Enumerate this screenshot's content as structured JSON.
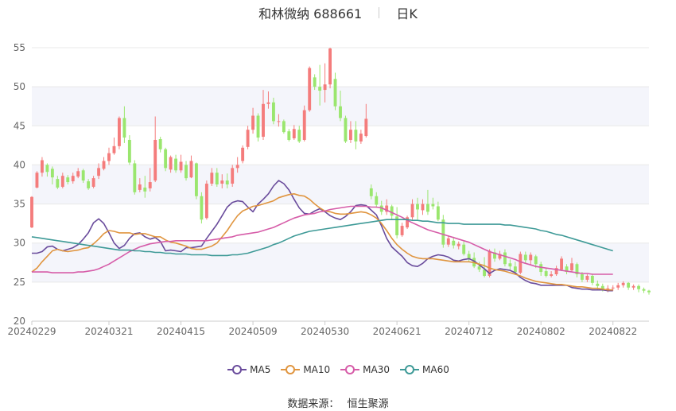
{
  "header": {
    "title": "和林微纳 688661",
    "period": "日K"
  },
  "footer": {
    "source_label": "数据来源：",
    "source_name": "恒生聚源"
  },
  "colors": {
    "up": "#f47c7c",
    "down": "#9ae66e",
    "ma5": "#6a4c9c",
    "ma10": "#e0953f",
    "ma30": "#d65ca8",
    "ma60": "#3e9a97",
    "band": "#f4f5fb",
    "grid": "#e8e8e8",
    "axis_text": "#666666"
  },
  "chart_data": {
    "type": "candlestick",
    "title": "和林微纳 688661",
    "period": "日K",
    "xlabel": "",
    "ylabel": "",
    "ylim": [
      20,
      55
    ],
    "yticks": [
      20,
      25,
      30,
      35,
      40,
      45,
      50,
      55
    ],
    "x_tick_labels": [
      "20240229",
      "20240321",
      "20240415",
      "20240509",
      "20240530",
      "20240621",
      "20240712",
      "20240802",
      "20240822"
    ],
    "x_tick_indices": [
      0,
      15,
      29,
      43,
      57,
      71,
      85,
      99,
      113
    ],
    "grid": true,
    "legend_position": "bottom",
    "dates": [
      "20240229",
      "20240301",
      "20240304",
      "20240305",
      "20240306",
      "20240307",
      "20240308",
      "20240311",
      "20240312",
      "20240313",
      "20240314",
      "20240315",
      "20240318",
      "20240319",
      "20240320",
      "20240321",
      "20240322",
      "20240325",
      "20240326",
      "20240327",
      "20240328",
      "20240329",
      "20240401",
      "20240402",
      "20240403",
      "20240408",
      "20240409",
      "20240410",
      "20240411",
      "20240415",
      "20240416",
      "20240417",
      "20240418",
      "20240419",
      "20240422",
      "20240423",
      "20240424",
      "20240425",
      "20240426",
      "20240429",
      "20240430",
      "20240506",
      "20240507",
      "20240509",
      "20240510",
      "20240513",
      "20240514",
      "20240515",
      "20240516",
      "20240517",
      "20240520",
      "20240521",
      "20240522",
      "20240523",
      "20240524",
      "20240527",
      "20240528",
      "20240530",
      "20240531",
      "20240603",
      "20240604",
      "20240605",
      "20240606",
      "20240607",
      "20240611",
      "20240612",
      "20240613",
      "20240614",
      "20240617",
      "20240618",
      "20240619",
      "20240621",
      "20240624",
      "20240625",
      "20240626",
      "20240627",
      "20240628",
      "20240701",
      "20240702",
      "20240703",
      "20240704",
      "20240705",
      "20240708",
      "20240709",
      "20240710",
      "20240712",
      "20240715",
      "20240716",
      "20240717",
      "20240718",
      "20240719",
      "20240722",
      "20240723",
      "20240724",
      "20240725",
      "20240726",
      "20240729",
      "20240730",
      "20240731",
      "20240802",
      "20240805",
      "20240806",
      "20240807",
      "20240808",
      "20240809",
      "20240812",
      "20240813",
      "20240814",
      "20240815",
      "20240816",
      "20240819",
      "20240820",
      "20240821",
      "20240822"
    ],
    "ohlc": [
      [
        32.0,
        35.9,
        31.9,
        36.0
      ],
      [
        37.1,
        39.0,
        37.0,
        39.2
      ],
      [
        39.0,
        40.6,
        38.5,
        41.0
      ],
      [
        40.0,
        39.1,
        38.5,
        40.2
      ],
      [
        39.5,
        38.4,
        37.5,
        39.8
      ],
      [
        38.2,
        37.1,
        36.9,
        38.6
      ],
      [
        37.2,
        38.6,
        37.0,
        39.0
      ],
      [
        38.4,
        37.8,
        37.5,
        38.7
      ],
      [
        37.9,
        38.6,
        37.6,
        39.0
      ],
      [
        38.5,
        39.2,
        38.3,
        39.6
      ],
      [
        39.3,
        38.0,
        37.7,
        39.5
      ],
      [
        37.9,
        37.0,
        36.8,
        38.2
      ],
      [
        37.2,
        38.3,
        37.0,
        38.6
      ],
      [
        38.6,
        39.6,
        38.2,
        40.2
      ],
      [
        39.5,
        40.5,
        39.3,
        41.0
      ],
      [
        40.5,
        41.5,
        40.0,
        42.2
      ],
      [
        41.5,
        42.4,
        41.3,
        43.5
      ],
      [
        42.4,
        46.0,
        42.0,
        46.2
      ],
      [
        46.0,
        43.5,
        42.8,
        47.5
      ],
      [
        43.2,
        40.3,
        40.0,
        43.8
      ],
      [
        40.2,
        36.5,
        36.2,
        40.6
      ],
      [
        36.8,
        37.5,
        36.5,
        38.3
      ],
      [
        37.1,
        36.6,
        35.8,
        38.6
      ],
      [
        37.0,
        37.8,
        36.6,
        39.6
      ],
      [
        38.0,
        43.2,
        37.8,
        46.2
      ],
      [
        43.3,
        42.0,
        41.6,
        43.6
      ],
      [
        42.0,
        39.6,
        39.2,
        42.2
      ],
      [
        39.4,
        41.0,
        39.0,
        41.2
      ],
      [
        40.8,
        39.3,
        39.0,
        41.3
      ],
      [
        39.3,
        40.4,
        39.0,
        41.3
      ],
      [
        40.0,
        38.3,
        38.0,
        40.5
      ],
      [
        38.4,
        40.5,
        38.3,
        41.2
      ],
      [
        40.2,
        36.0,
        35.6,
        40.3
      ],
      [
        36.0,
        33.0,
        32.5,
        36.5
      ],
      [
        33.2,
        37.6,
        33.0,
        38.0
      ],
      [
        37.6,
        39.0,
        37.3,
        39.6
      ],
      [
        39.0,
        37.5,
        37.2,
        39.6
      ],
      [
        37.6,
        38.0,
        37.0,
        38.8
      ],
      [
        38.0,
        37.5,
        37.0,
        38.9
      ],
      [
        37.6,
        39.6,
        37.2,
        40.0
      ],
      [
        39.6,
        40.0,
        39.0,
        41.0
      ],
      [
        40.5,
        42.2,
        40.2,
        42.5
      ],
      [
        42.3,
        44.5,
        42.0,
        45.0
      ],
      [
        44.5,
        46.3,
        44.0,
        47.3
      ],
      [
        46.3,
        43.5,
        43.0,
        46.6
      ],
      [
        43.6,
        47.8,
        43.2,
        49.6
      ],
      [
        47.8,
        48.0,
        47.2,
        49.4
      ],
      [
        48.0,
        45.6,
        45.2,
        48.6
      ],
      [
        45.5,
        45.6,
        44.9,
        46.5
      ],
      [
        45.6,
        44.2,
        44.0,
        45.8
      ],
      [
        44.3,
        43.2,
        43.0,
        44.6
      ],
      [
        43.4,
        44.6,
        43.2,
        45.1
      ],
      [
        44.5,
        43.0,
        42.8,
        45.0
      ],
      [
        43.2,
        47.0,
        43.0,
        47.6
      ],
      [
        47.0,
        52.4,
        46.8,
        52.6
      ],
      [
        51.2,
        50.0,
        49.6,
        51.6
      ],
      [
        50.0,
        49.5,
        47.6,
        52.8
      ],
      [
        49.6,
        50.3,
        48.0,
        53.0
      ],
      [
        50.3,
        54.9,
        49.8,
        55.0
      ],
      [
        51.0,
        47.5,
        47.0,
        51.8
      ],
      [
        47.5,
        46.0,
        45.6,
        49.5
      ],
      [
        46.0,
        43.0,
        42.8,
        46.3
      ],
      [
        43.2,
        44.5,
        42.8,
        45.6
      ],
      [
        44.5,
        43.0,
        42.0,
        45.6
      ],
      [
        43.0,
        44.0,
        42.7,
        44.5
      ],
      [
        43.7,
        45.9,
        43.5,
        47.8
      ],
      [
        37.0,
        36.0,
        35.6,
        37.5
      ],
      [
        36.0,
        34.9,
        34.5,
        36.5
      ],
      [
        34.8,
        34.0,
        33.6,
        35.4
      ],
      [
        34.0,
        34.8,
        33.6,
        35.6
      ],
      [
        34.7,
        33.5,
        33.0,
        34.9
      ],
      [
        33.4,
        31.0,
        30.6,
        34.6
      ],
      [
        31.0,
        32.2,
        30.8,
        32.6
      ],
      [
        32.0,
        33.3,
        31.8,
        33.5
      ],
      [
        33.3,
        35.0,
        33.0,
        35.6
      ],
      [
        35.0,
        34.3,
        33.0,
        35.8
      ],
      [
        34.2,
        35.0,
        33.6,
        35.6
      ],
      [
        35.0,
        34.0,
        33.6,
        36.8
      ],
      [
        35.0,
        34.7,
        34.3,
        35.8
      ],
      [
        34.7,
        33.0,
        32.8,
        35.3
      ],
      [
        33.0,
        29.8,
        29.4,
        33.6
      ],
      [
        29.8,
        30.6,
        29.5,
        31.0
      ],
      [
        30.3,
        29.7,
        29.3,
        30.8
      ],
      [
        29.6,
        29.9,
        29.2,
        30.2
      ],
      [
        29.8,
        28.6,
        28.4,
        30.2
      ],
      [
        28.6,
        28.0,
        27.6,
        29.0
      ],
      [
        28.1,
        27.0,
        26.8,
        28.8
      ],
      [
        27.0,
        26.6,
        26.3,
        27.6
      ],
      [
        26.6,
        25.8,
        25.6,
        28.2
      ],
      [
        25.8,
        29.0,
        25.6,
        29.2
      ],
      [
        28.8,
        28.0,
        27.6,
        29.3
      ],
      [
        28.0,
        28.6,
        27.8,
        29.0
      ],
      [
        28.8,
        27.3,
        27.0,
        29.2
      ],
      [
        27.4,
        27.0,
        26.6,
        27.9
      ],
      [
        27.0,
        26.3,
        26.0,
        27.6
      ],
      [
        26.2,
        28.6,
        26.0,
        28.9
      ],
      [
        28.5,
        27.8,
        27.4,
        28.9
      ],
      [
        27.8,
        28.5,
        27.2,
        28.8
      ],
      [
        28.3,
        27.3,
        26.8,
        28.5
      ],
      [
        27.3,
        26.3,
        25.8,
        27.6
      ],
      [
        26.4,
        25.8,
        25.6,
        26.8
      ],
      [
        25.8,
        26.0,
        25.6,
        26.4
      ],
      [
        26.0,
        26.8,
        25.8,
        27.1
      ],
      [
        26.6,
        28.0,
        26.4,
        28.3
      ],
      [
        27.0,
        26.3,
        26.0,
        27.3
      ],
      [
        26.5,
        27.4,
        26.3,
        28.1
      ],
      [
        27.3,
        26.0,
        25.6,
        27.5
      ],
      [
        26.0,
        25.3,
        25.0,
        26.3
      ],
      [
        25.3,
        25.8,
        25.0,
        26.0
      ],
      [
        25.8,
        24.9,
        24.6,
        26.1
      ],
      [
        24.8,
        24.5,
        24.0,
        25.2
      ],
      [
        24.5,
        24.0,
        23.8,
        24.8
      ],
      [
        24.0,
        24.2,
        23.7,
        24.6
      ],
      [
        24.2,
        24.3,
        23.9,
        24.6
      ],
      [
        24.3,
        24.6,
        24.0,
        24.9
      ],
      [
        24.6,
        24.9,
        24.3,
        25.1
      ],
      [
        24.9,
        24.3,
        24.0,
        25.0
      ],
      [
        24.3,
        24.5,
        24.0,
        24.7
      ],
      [
        24.5,
        24.1,
        23.7,
        24.7
      ],
      [
        24.1,
        23.9,
        23.6,
        24.3
      ],
      [
        23.9,
        23.7,
        23.4,
        24.0
      ]
    ],
    "series": [
      {
        "name": "MA5",
        "values": [
          28.7,
          28.7,
          28.9,
          29.5,
          29.6,
          29.2,
          29.0,
          29.2,
          29.4,
          29.8,
          30.5,
          31.3,
          32.6,
          33.1,
          32.5,
          31.3,
          30.0,
          29.3,
          29.7,
          30.6,
          31.2,
          31.3,
          30.8,
          30.5,
          30.7,
          30.2,
          29.0,
          29.1,
          29.0,
          28.9,
          29.4,
          29.4,
          29.5,
          29.6,
          30.6,
          31.5,
          32.4,
          33.5,
          34.6,
          35.2,
          35.4,
          35.3,
          34.6,
          34.0,
          35.0,
          35.6,
          36.3,
          37.3,
          38.0,
          37.6,
          36.8,
          35.6,
          34.5,
          33.8,
          33.7,
          34.1,
          34.4,
          34.0,
          33.5,
          33.2,
          33.0,
          33.4,
          34.0,
          34.8,
          34.9,
          34.8,
          34.2,
          33.6,
          32.2,
          30.6,
          29.5,
          28.9,
          28.3,
          27.5,
          27.1,
          27.0,
          27.4,
          28.0,
          28.3,
          28.5,
          28.4,
          28.2,
          27.8,
          27.7,
          27.9,
          28.0,
          27.7,
          27.2,
          26.7,
          26.1,
          26.5,
          26.7,
          26.6,
          26.5,
          26.2,
          25.6,
          25.2,
          24.9,
          24.8,
          24.6,
          24.6,
          24.6,
          24.6,
          24.6,
          24.6,
          24.3,
          24.2,
          24.1,
          24.1,
          24.0,
          24.0,
          24.0,
          23.9,
          23.9
        ]
      },
      {
        "name": "MA10",
        "values": [
          26.3,
          26.8,
          27.6,
          28.3,
          29.0,
          29.2,
          29.0,
          28.9,
          29.0,
          29.1,
          29.3,
          29.4,
          29.9,
          30.5,
          31.2,
          31.6,
          31.5,
          31.3,
          31.3,
          31.3,
          31.1,
          31.2,
          31.2,
          31.0,
          30.8,
          30.8,
          30.4,
          30.1,
          30.0,
          29.8,
          29.6,
          29.3,
          29.2,
          29.2,
          29.4,
          29.6,
          30.0,
          30.8,
          31.6,
          32.6,
          33.5,
          34.1,
          34.4,
          34.7,
          34.8,
          35.0,
          35.2,
          35.4,
          35.8,
          36.0,
          36.2,
          36.3,
          36.1,
          36.0,
          35.6,
          35.0,
          34.5,
          34.1,
          34.0,
          33.8,
          33.7,
          33.7,
          33.8,
          33.9,
          34.0,
          33.9,
          33.6,
          33.2,
          32.5,
          31.6,
          30.6,
          29.8,
          29.2,
          28.7,
          28.3,
          28.1,
          28.0,
          28.0,
          28.0,
          27.9,
          27.8,
          27.7,
          27.6,
          27.6,
          27.6,
          27.6,
          27.5,
          27.3,
          27.1,
          26.8,
          26.6,
          26.5,
          26.4,
          26.2,
          26.0,
          25.8,
          25.5,
          25.3,
          25.1,
          25.0,
          24.9,
          24.8,
          24.7,
          24.7,
          24.6,
          24.5,
          24.4,
          24.4,
          24.3,
          24.2,
          24.2,
          24.1,
          24.0,
          24.0
        ]
      },
      {
        "name": "MA30",
        "values": [
          26.3,
          26.3,
          26.3,
          26.3,
          26.2,
          26.2,
          26.2,
          26.2,
          26.2,
          26.3,
          26.3,
          26.4,
          26.5,
          26.7,
          27.0,
          27.3,
          27.7,
          28.1,
          28.5,
          28.9,
          29.2,
          29.5,
          29.7,
          29.9,
          30.0,
          30.1,
          30.2,
          30.2,
          30.3,
          30.3,
          30.3,
          30.3,
          30.3,
          30.3,
          30.3,
          30.4,
          30.5,
          30.6,
          30.7,
          30.8,
          31.0,
          31.1,
          31.2,
          31.3,
          31.4,
          31.6,
          31.8,
          32.0,
          32.3,
          32.6,
          32.9,
          33.2,
          33.4,
          33.6,
          33.7,
          33.8,
          34.0,
          34.1,
          34.3,
          34.4,
          34.5,
          34.6,
          34.7,
          34.7,
          34.7,
          34.7,
          34.6,
          34.6,
          34.5,
          34.2,
          33.9,
          33.6,
          33.3,
          32.9,
          32.6,
          32.3,
          32.0,
          31.7,
          31.5,
          31.3,
          31.1,
          30.9,
          30.7,
          30.5,
          30.3,
          30.1,
          29.8,
          29.5,
          29.2,
          28.9,
          28.7,
          28.5,
          28.3,
          28.1,
          27.9,
          27.6,
          27.4,
          27.2,
          27.0,
          26.9,
          26.8,
          26.7,
          26.6,
          26.5,
          26.4,
          26.3,
          26.2,
          26.1,
          26.1,
          26.0,
          26.0,
          26.0,
          26.0,
          26.0
        ]
      },
      {
        "name": "MA60",
        "values": [
          30.8,
          30.7,
          30.6,
          30.5,
          30.4,
          30.3,
          30.2,
          30.1,
          30.0,
          29.9,
          29.8,
          29.7,
          29.6,
          29.5,
          29.4,
          29.3,
          29.2,
          29.1,
          29.1,
          29.1,
          29.0,
          29.0,
          28.9,
          28.9,
          28.8,
          28.8,
          28.7,
          28.7,
          28.6,
          28.6,
          28.6,
          28.5,
          28.5,
          28.5,
          28.5,
          28.4,
          28.4,
          28.4,
          28.4,
          28.5,
          28.5,
          28.6,
          28.7,
          28.9,
          29.1,
          29.3,
          29.5,
          29.8,
          30.0,
          30.3,
          30.6,
          30.9,
          31.1,
          31.3,
          31.5,
          31.6,
          31.7,
          31.8,
          31.9,
          32.0,
          32.1,
          32.2,
          32.3,
          32.4,
          32.5,
          32.6,
          32.7,
          32.8,
          32.9,
          33.0,
          33.0,
          33.0,
          33.0,
          33.0,
          32.9,
          32.9,
          32.8,
          32.8,
          32.7,
          32.6,
          32.6,
          32.5,
          32.5,
          32.5,
          32.4,
          32.4,
          32.4,
          32.4,
          32.4,
          32.4,
          32.4,
          32.4,
          32.3,
          32.3,
          32.2,
          32.1,
          32.0,
          31.9,
          31.8,
          31.6,
          31.5,
          31.3,
          31.1,
          31.0,
          30.8,
          30.6,
          30.4,
          30.2,
          30.0,
          29.8,
          29.6,
          29.4,
          29.2,
          29.0
        ]
      }
    ]
  }
}
